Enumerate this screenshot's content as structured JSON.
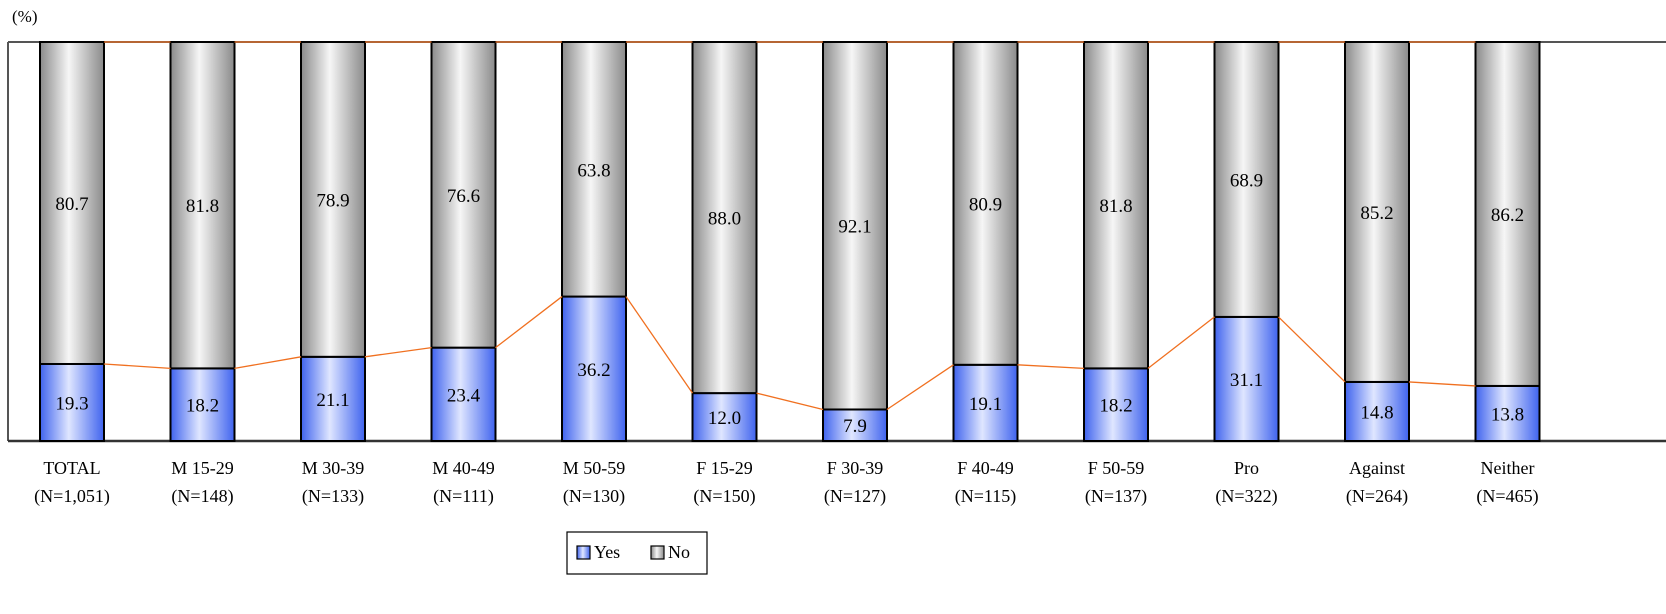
{
  "chart_data": {
    "type": "bar",
    "stacked": true,
    "percent_100": true,
    "unit_label": "(%)",
    "ylim": [
      0,
      100
    ],
    "grid": false,
    "legend_position": "bottom-center",
    "categories": [
      {
        "label": "TOTAL",
        "n": "(N=1,051)"
      },
      {
        "label": "M 15-29",
        "n": "(N=148)"
      },
      {
        "label": "M 30-39",
        "n": "(N=133)"
      },
      {
        "label": "M 40-49",
        "n": "(N=111)"
      },
      {
        "label": "M 50-59",
        "n": "(N=130)"
      },
      {
        "label": "F 15-29",
        "n": "(N=150)"
      },
      {
        "label": "F 30-39",
        "n": "(N=127)"
      },
      {
        "label": "F 40-49",
        "n": "(N=115)"
      },
      {
        "label": "F 50-59",
        "n": "(N=137)"
      },
      {
        "label": "Pro",
        "n": "(N=322)"
      },
      {
        "label": "Against",
        "n": "(N=264)"
      },
      {
        "label": "Neither",
        "n": "(N=465)"
      }
    ],
    "series": [
      {
        "name": "Yes",
        "color": "#5b7cf0",
        "values": [
          19.3,
          18.2,
          21.1,
          23.4,
          36.2,
          12.0,
          7.9,
          19.1,
          18.2,
          31.1,
          14.8,
          13.8
        ]
      },
      {
        "name": "No",
        "color": "#bdbdbd",
        "values": [
          80.7,
          81.8,
          78.9,
          76.6,
          63.8,
          88.0,
          92.1,
          80.9,
          81.8,
          68.9,
          85.2,
          86.2
        ]
      }
    ],
    "series_line_color": "#f07020"
  }
}
